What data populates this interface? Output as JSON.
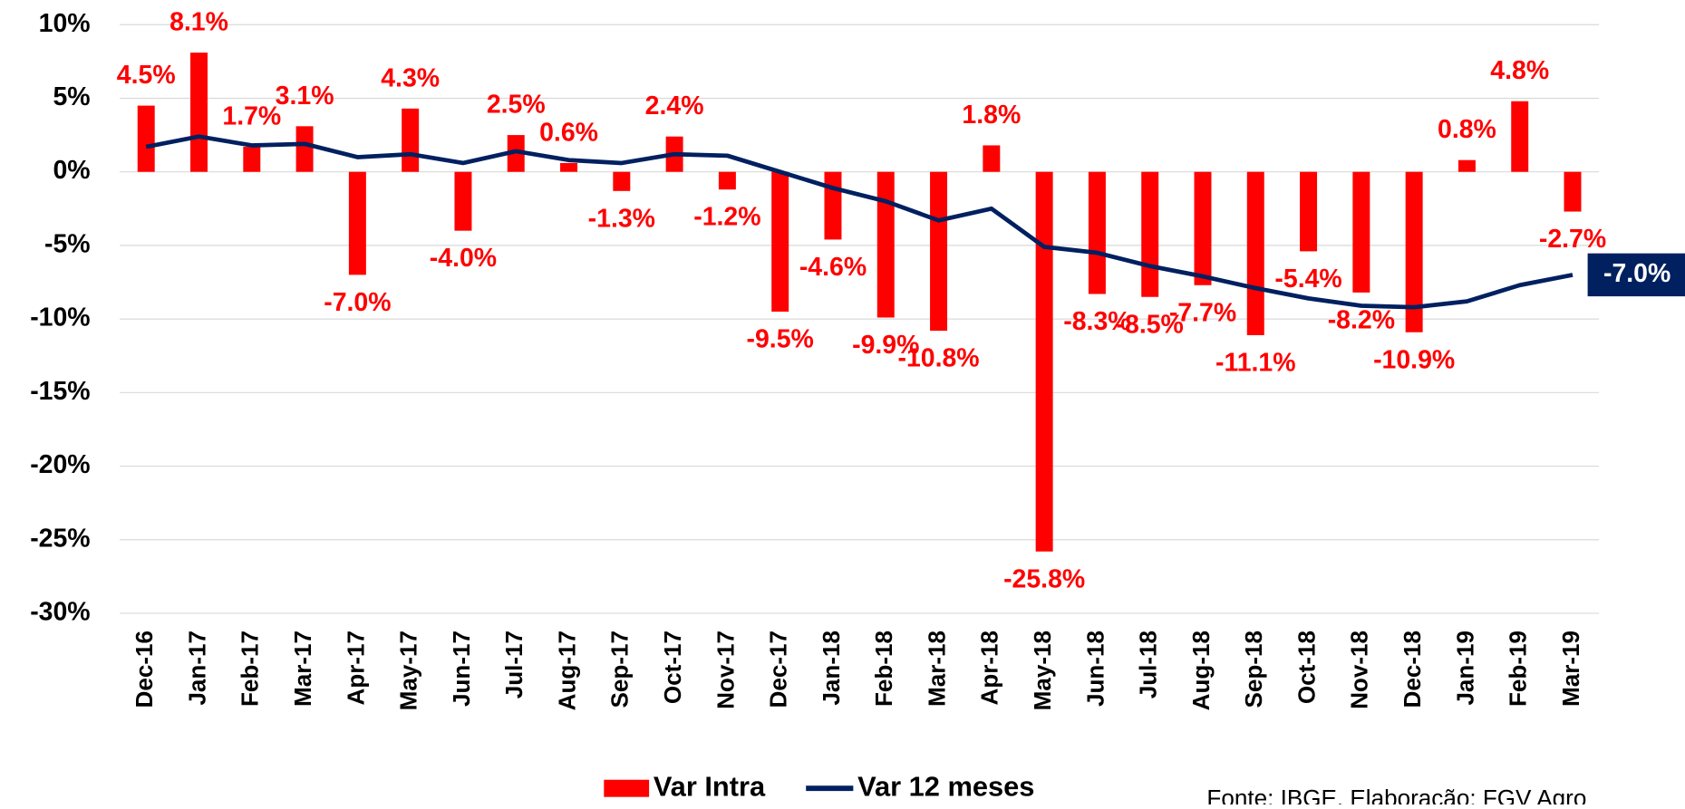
{
  "chart_data": {
    "type": "bar_line",
    "categories": [
      "Dec-16",
      "Jan-17",
      "Feb-17",
      "Mar-17",
      "Apr-17",
      "May-17",
      "Jun-17",
      "Jul-17",
      "Aug-17",
      "Sep-17",
      "Oct-17",
      "Nov-17",
      "Dec-17",
      "Jan-18",
      "Feb-18",
      "Mar-18",
      "Apr-18",
      "May-18",
      "Jun-18",
      "Jul-18",
      "Aug-18",
      "Sep-18",
      "Oct-18",
      "Nov-18",
      "Dec-18",
      "Jan-19",
      "Feb-19",
      "Mar-19"
    ],
    "series": [
      {
        "name": "Var Intra",
        "type": "bar",
        "color": "#ff0000",
        "values": [
          4.5,
          8.1,
          1.7,
          3.1,
          -7.0,
          4.3,
          -4.0,
          2.5,
          0.6,
          -1.3,
          2.4,
          -1.2,
          -9.5,
          -4.6,
          -9.9,
          -10.8,
          1.8,
          -25.8,
          -8.3,
          -8.5,
          -7.7,
          -11.1,
          -5.4,
          -8.2,
          -10.9,
          0.8,
          4.8,
          -2.7
        ],
        "value_labels": [
          "4.5%",
          "8.1%",
          "1.7%",
          "3.1%",
          "-7.0%",
          "4.3%",
          "-4.0%",
          "2.5%",
          "0.6%",
          "-1.3%",
          "2.4%",
          "-1.2%",
          "-9.5%",
          "-4.6%",
          "-9.9%",
          "-10.8%",
          "1.8%",
          "-25.8%",
          "-8.3%",
          "-8.5%",
          "-7.7%",
          "-11.1%",
          "-5.4%",
          "-8.2%",
          "-10.9%",
          "0.8%",
          "4.8%",
          "-2.7%"
        ]
      },
      {
        "name": "Var 12 meses",
        "type": "line",
        "color": "#002060",
        "values": [
          1.7,
          2.4,
          1.8,
          1.9,
          1.0,
          1.2,
          0.6,
          1.4,
          0.8,
          0.6,
          1.2,
          1.1,
          0.0,
          -1.1,
          -2.0,
          -3.3,
          -2.5,
          -5.1,
          -5.5,
          -6.4,
          -7.1,
          -7.9,
          -8.6,
          -9.1,
          -9.2,
          -8.8,
          -7.7,
          -7.0
        ],
        "value_labels": [
          null,
          null,
          null,
          null,
          null,
          null,
          null,
          null,
          null,
          null,
          null,
          null,
          null,
          null,
          null,
          null,
          null,
          null,
          null,
          null,
          null,
          null,
          null,
          null,
          null,
          null,
          null,
          "-7.0%"
        ]
      }
    ],
    "ylim": [
      -30,
      10
    ],
    "yticks": [
      {
        "value": -30,
        "label": "-30%"
      },
      {
        "value": -25,
        "label": "-25%"
      },
      {
        "value": -20,
        "label": "-20%"
      },
      {
        "value": -15,
        "label": "-15%"
      },
      {
        "value": -10,
        "label": "-10%"
      },
      {
        "value": -5,
        "label": "-5%"
      },
      {
        "value": 0,
        "label": "0%"
      },
      {
        "value": 5,
        "label": "5%"
      },
      {
        "value": 10,
        "label": "10%"
      }
    ],
    "grid": true,
    "legend": "bottom",
    "source": "Fonte: IBGE. Elaboração: FGV Agro"
  }
}
